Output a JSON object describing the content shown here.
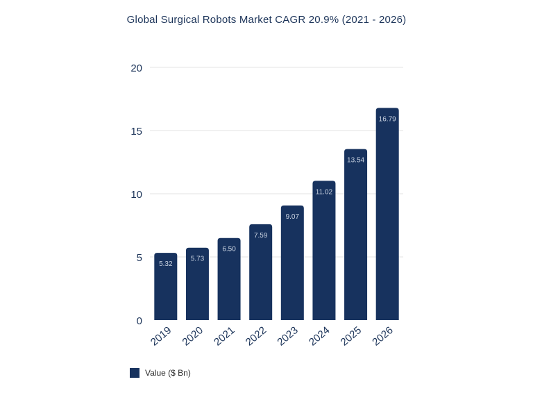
{
  "chart_data": {
    "type": "bar",
    "title": "Global Surgical Robots Market CAGR 20.9% (2021 - 2026)",
    "categories": [
      "2019",
      "2020",
      "2021",
      "2022",
      "2023",
      "2024",
      "2025",
      "2026"
    ],
    "series": [
      {
        "name": "Value ($ Bn)",
        "values": [
          5.32,
          5.73,
          6.5,
          7.59,
          9.07,
          11.02,
          13.54,
          16.79
        ],
        "labels": [
          "5.32",
          "5.73",
          "6.50",
          "7.59",
          "9.07",
          "11.02",
          "13.54",
          "16.79"
        ],
        "color": "#17325e"
      }
    ],
    "ylim": [
      0,
      20
    ],
    "yticks": [
      0,
      5,
      10,
      15,
      20
    ],
    "grid": true,
    "legend": "bottom-left"
  }
}
